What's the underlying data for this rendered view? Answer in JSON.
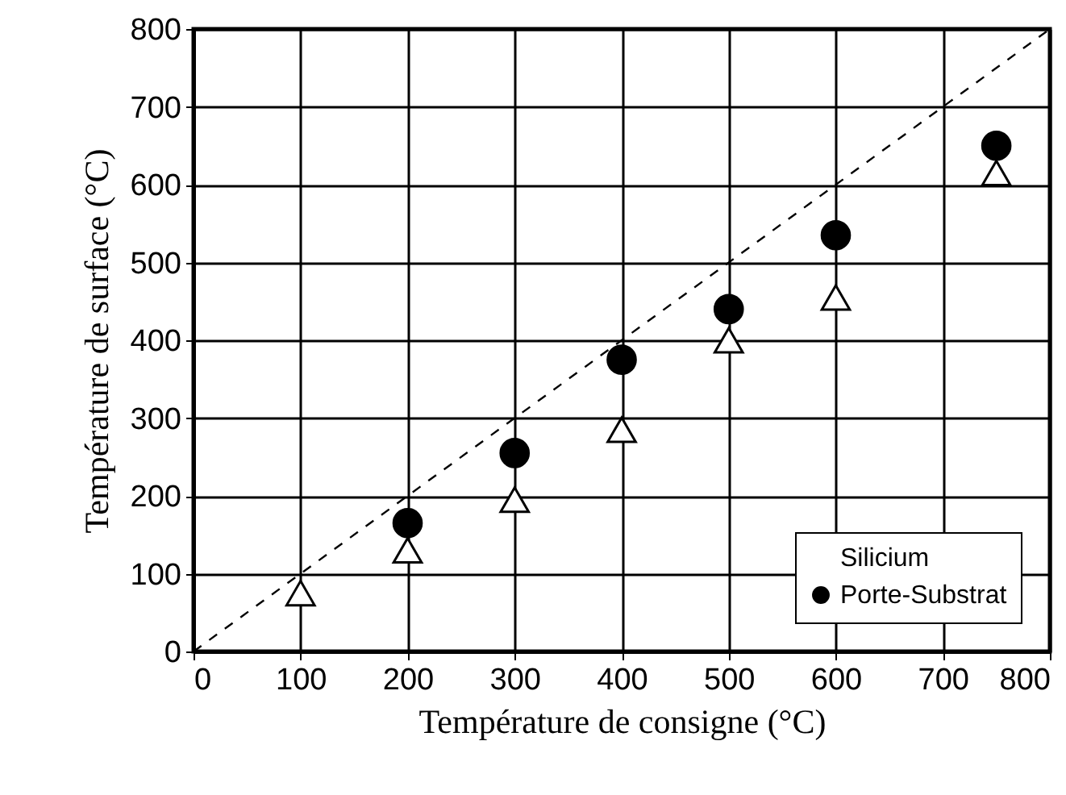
{
  "chart_data": {
    "type": "scatter",
    "xlabel": "Température de consigne (°C)",
    "ylabel": "Température de surface (°C)",
    "x": [
      100,
      200,
      300,
      400,
      500,
      600,
      750
    ],
    "series": [
      {
        "name": "Silicium",
        "color": "#ffffff",
        "marker": "triangle",
        "values": [
          75,
          130,
          195,
          285,
          400,
          455,
          615
        ]
      },
      {
        "name": "Porte-Substrat",
        "color": "#000000",
        "marker": "circle",
        "values": [
          null,
          165,
          255,
          375,
          440,
          535,
          650
        ]
      },
      {
        "type": "line",
        "x": [
          0,
          800
        ],
        "color": "#000000",
        "line_style": "dashed",
        "marker": "none",
        "values": [
          0,
          800
        ]
      }
    ],
    "xlim": [
      0,
      800
    ],
    "ylim": [
      0,
      800
    ],
    "xticks": [
      0,
      100,
      200,
      300,
      400,
      500,
      600,
      700,
      800
    ],
    "yticks": [
      0,
      100,
      200,
      300,
      400,
      500,
      600,
      700,
      800
    ],
    "grid": true,
    "legend": "bottom right"
  }
}
